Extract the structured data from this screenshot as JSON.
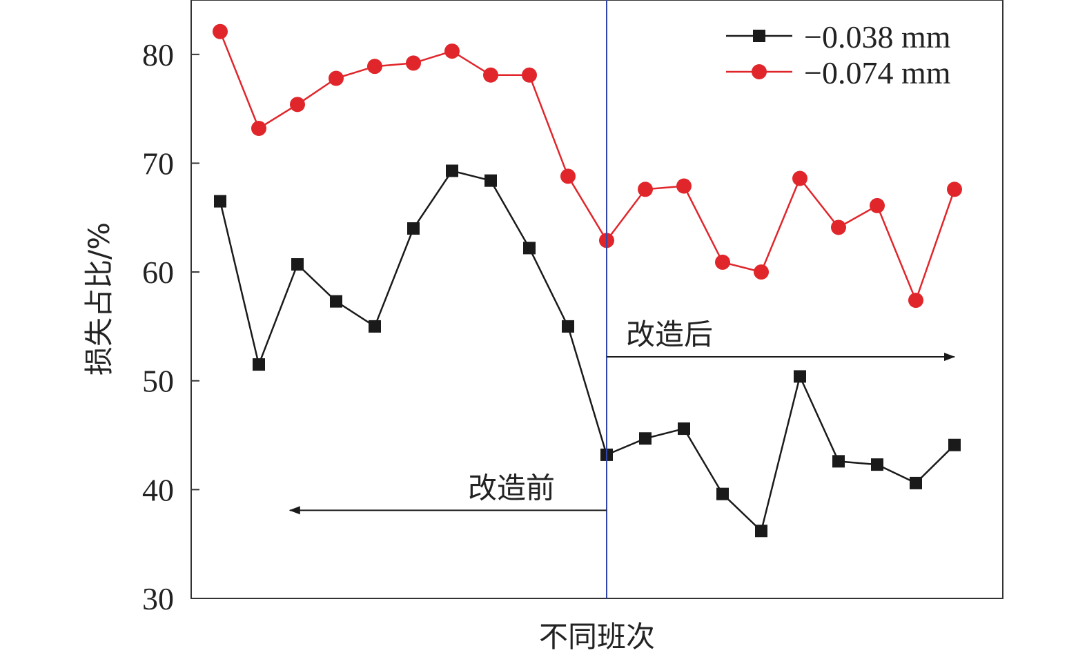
{
  "chart_data": {
    "type": "line",
    "title": "",
    "xlabel": "不同班次",
    "ylabel": "损失占比/%",
    "ylim": [
      30,
      85
    ],
    "yticks": [
      30,
      40,
      50,
      60,
      70,
      80
    ],
    "xlim": [
      0.25,
      21.25
    ],
    "x": [
      1,
      2,
      3,
      4,
      5,
      6,
      7,
      8,
      9,
      10,
      11,
      12,
      13,
      14,
      15,
      16,
      17,
      18,
      19,
      20
    ],
    "series": [
      {
        "name": "−0.038 mm",
        "color": "#1a1a1a",
        "marker": "square",
        "values": [
          66.5,
          51.5,
          60.7,
          57.3,
          55.0,
          64.0,
          69.3,
          68.4,
          62.2,
          55.0,
          43.2,
          44.7,
          45.6,
          39.6,
          36.2,
          50.4,
          42.6,
          42.3,
          40.6,
          44.1
        ]
      },
      {
        "name": "−0.074 mm",
        "color": "#e0262b",
        "marker": "circle",
        "values": [
          82.1,
          73.2,
          75.4,
          77.8,
          78.9,
          79.2,
          80.3,
          78.1,
          78.1,
          68.8,
          62.9,
          67.6,
          67.9,
          60.9,
          60.0,
          68.6,
          64.1,
          66.1,
          57.4,
          67.6
        ]
      }
    ],
    "divider": {
      "x": 11,
      "color": "#3347a8"
    },
    "annotations": [
      {
        "text": "改造后",
        "from_x": 11,
        "to_x": 20,
        "y": 52.2,
        "direction": "right"
      },
      {
        "text": "改造前",
        "from_x": 11,
        "to_x": 2.8,
        "y": 38.1,
        "direction": "left"
      }
    ],
    "legend_position": "top-right",
    "grid": false
  }
}
